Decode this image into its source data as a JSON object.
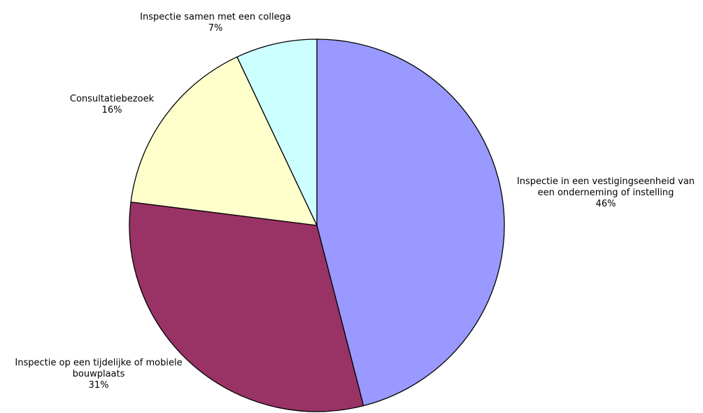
{
  "chart_data": {
    "type": "pie",
    "title": "",
    "slices": [
      {
        "label_lines": [
          "Inspectie in een vestigingseenheid van",
          "een onderneming of instelling"
        ],
        "value": 46,
        "value_label": "46%",
        "color": "#9999ff"
      },
      {
        "label_lines": [
          "Inspectie op een tijdelijke of mobiele",
          "bouwplaats"
        ],
        "value": 31,
        "value_label": "31%",
        "color": "#993366"
      },
      {
        "label_lines": [
          "Consultatiebezoek"
        ],
        "value": 16,
        "value_label": "16%",
        "color": "#ffffcc"
      },
      {
        "label_lines": [
          "Inspectie samen met een collega"
        ],
        "value": 7,
        "value_label": "7%",
        "color": "#ccffff"
      }
    ],
    "start": "top",
    "direction": "clockwise",
    "legend": "none"
  }
}
